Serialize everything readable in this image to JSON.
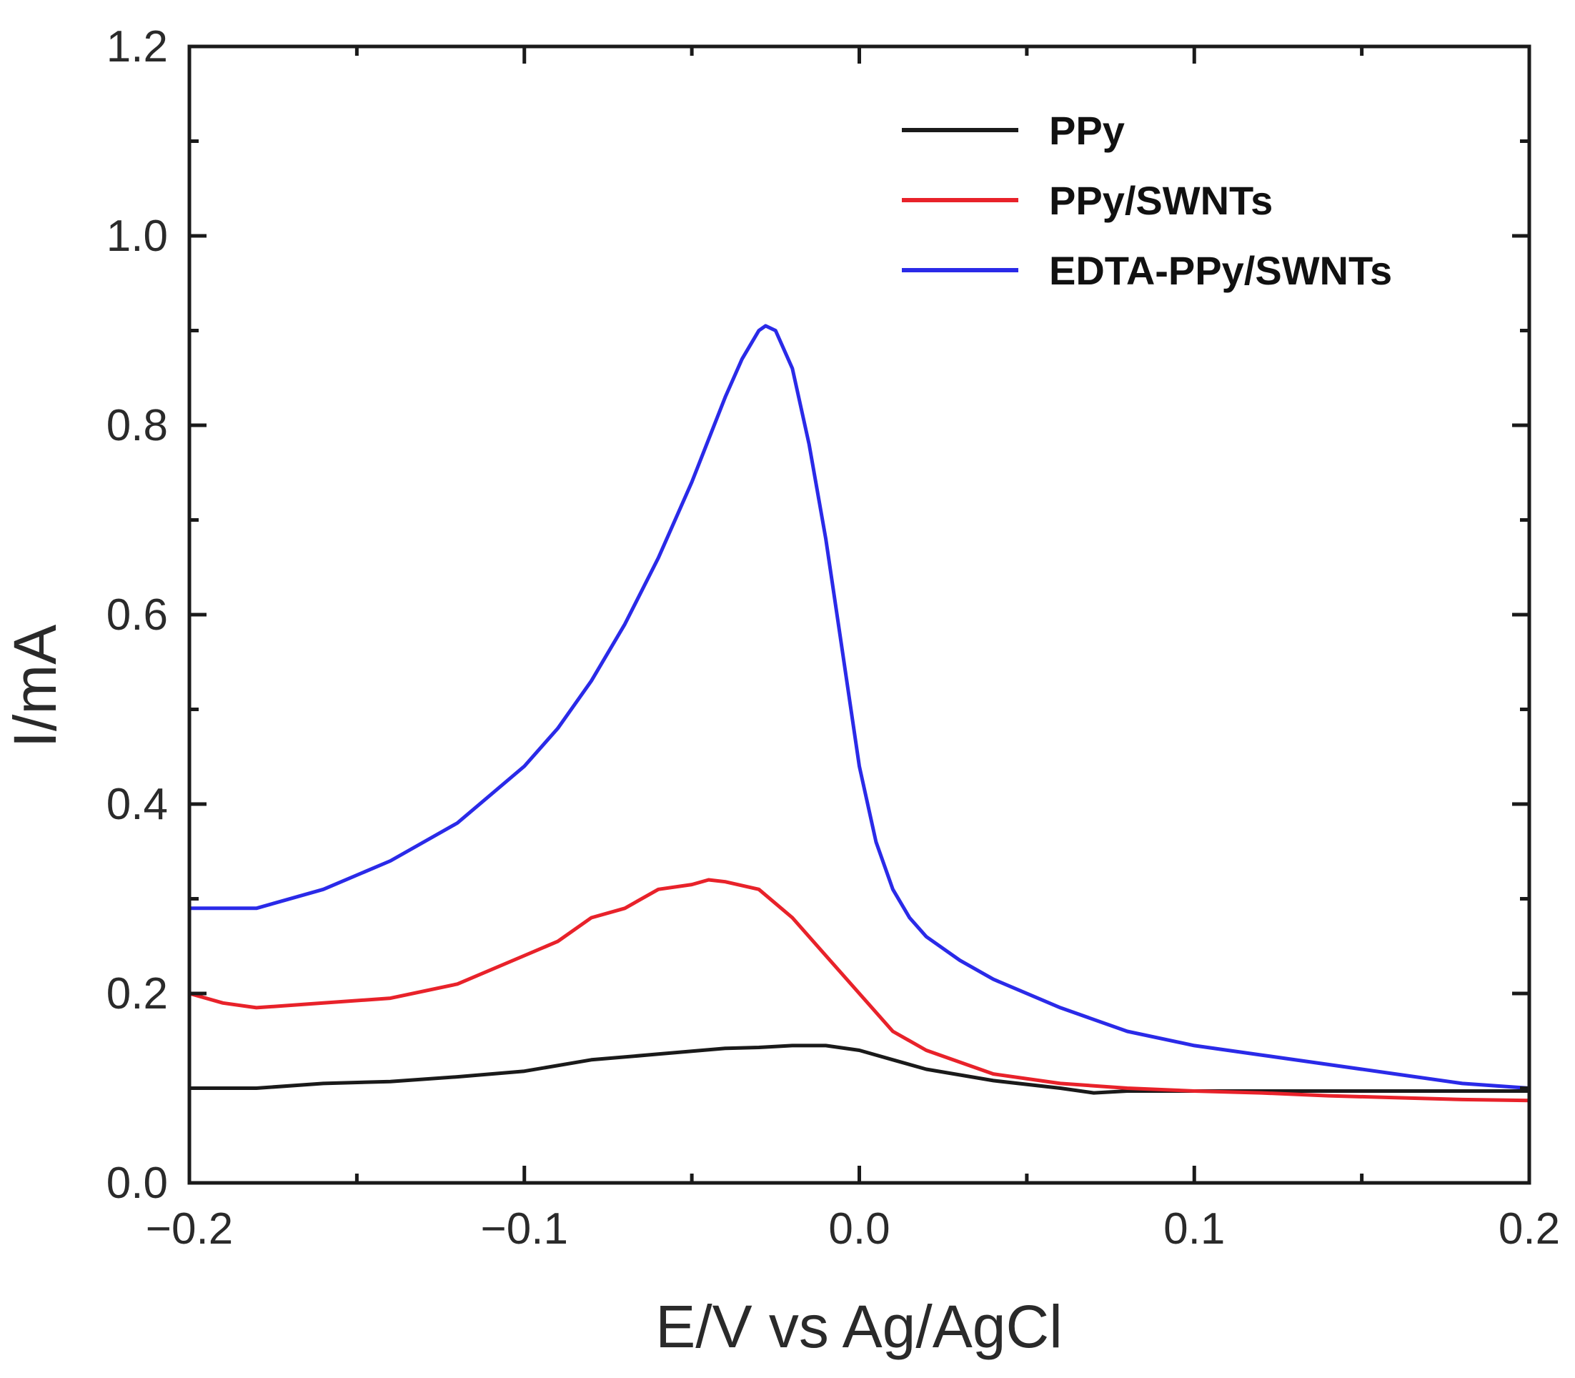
{
  "chart_data": {
    "type": "line",
    "xlabel": "E/V vs Ag/AgCl",
    "ylabel": "I/mA",
    "xlim": [
      -0.2,
      0.2
    ],
    "ylim": [
      0.0,
      1.2
    ],
    "x_ticks": [
      "−0.2",
      "−0.1",
      "0.0",
      "0.1",
      "0.2"
    ],
    "y_ticks": [
      "0.0",
      "0.2",
      "0.4",
      "0.6",
      "0.8",
      "1.0",
      "1.2"
    ],
    "grid": false,
    "legend_position": "top-right",
    "series": [
      {
        "name": "PPy",
        "color": "#1a1a1a",
        "x": [
          -0.2,
          -0.18,
          -0.16,
          -0.14,
          -0.12,
          -0.1,
          -0.08,
          -0.06,
          -0.04,
          -0.03,
          -0.02,
          -0.01,
          0.0,
          0.01,
          0.02,
          0.04,
          0.06,
          0.07,
          0.08,
          0.1,
          0.12,
          0.14,
          0.16,
          0.18,
          0.2
        ],
        "y": [
          0.1,
          0.1,
          0.105,
          0.107,
          0.112,
          0.118,
          0.13,
          0.136,
          0.142,
          0.143,
          0.145,
          0.145,
          0.14,
          0.13,
          0.12,
          0.108,
          0.1,
          0.095,
          0.097,
          0.097,
          0.097,
          0.097,
          0.097,
          0.097,
          0.097
        ]
      },
      {
        "name": "PPy/SWNTs",
        "color": "#e8222a",
        "x": [
          -0.2,
          -0.19,
          -0.18,
          -0.16,
          -0.14,
          -0.12,
          -0.1,
          -0.09,
          -0.08,
          -0.07,
          -0.06,
          -0.05,
          -0.045,
          -0.04,
          -0.03,
          -0.02,
          -0.01,
          0.0,
          0.01,
          0.02,
          0.04,
          0.06,
          0.08,
          0.1,
          0.12,
          0.14,
          0.16,
          0.18,
          0.2
        ],
        "y": [
          0.2,
          0.19,
          0.185,
          0.19,
          0.195,
          0.21,
          0.24,
          0.255,
          0.28,
          0.29,
          0.31,
          0.315,
          0.32,
          0.318,
          0.31,
          0.28,
          0.24,
          0.2,
          0.16,
          0.14,
          0.115,
          0.105,
          0.1,
          0.097,
          0.095,
          0.092,
          0.09,
          0.088,
          0.087
        ]
      },
      {
        "name": "EDTA-PPy/SWNTs",
        "color": "#2a2ae8",
        "x": [
          -0.2,
          -0.18,
          -0.16,
          -0.14,
          -0.12,
          -0.1,
          -0.09,
          -0.08,
          -0.07,
          -0.06,
          -0.05,
          -0.04,
          -0.035,
          -0.03,
          -0.028,
          -0.025,
          -0.02,
          -0.015,
          -0.01,
          -0.005,
          0.0,
          0.005,
          0.01,
          0.015,
          0.02,
          0.03,
          0.04,
          0.06,
          0.08,
          0.1,
          0.12,
          0.14,
          0.16,
          0.18,
          0.2
        ],
        "y": [
          0.29,
          0.29,
          0.31,
          0.34,
          0.38,
          0.44,
          0.48,
          0.53,
          0.59,
          0.66,
          0.74,
          0.83,
          0.87,
          0.9,
          0.905,
          0.9,
          0.86,
          0.78,
          0.68,
          0.56,
          0.44,
          0.36,
          0.31,
          0.28,
          0.26,
          0.235,
          0.215,
          0.185,
          0.16,
          0.145,
          0.135,
          0.125,
          0.115,
          0.105,
          0.1
        ]
      }
    ]
  }
}
